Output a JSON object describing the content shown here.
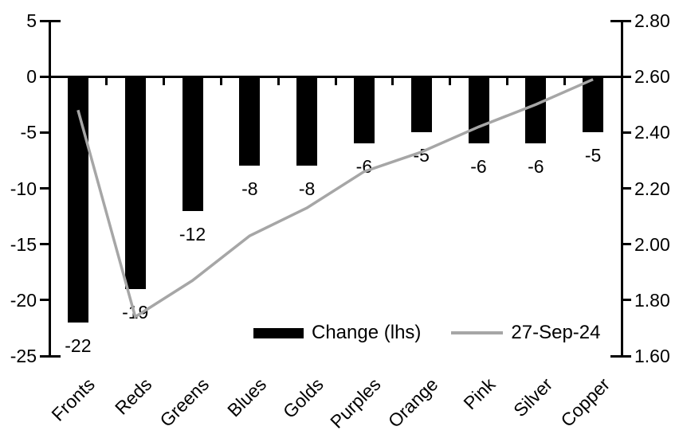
{
  "chart_data": {
    "type": "bar",
    "subtype": "dual-axis-bar-and-line",
    "title": "",
    "categories": [
      "Fronts",
      "Reds",
      "Greens",
      "Blues",
      "Golds",
      "Purples",
      "Orange",
      "Pink",
      "Silver",
      "Copper"
    ],
    "series": [
      {
        "name": "Change (lhs)",
        "type": "bar",
        "axis": "left",
        "color": "#000000",
        "values": [
          -22,
          -19,
          -12,
          -8,
          -8,
          -6,
          -5,
          -6,
          -6,
          -5
        ],
        "labels": [
          "-22",
          "-19",
          "-12",
          "-8",
          "-8",
          "-6",
          "-5",
          "-6",
          "-6",
          "-5"
        ]
      },
      {
        "name": "27-Sep-24",
        "type": "line",
        "axis": "right",
        "color": "#a6a6a6",
        "values": [
          2.48,
          1.74,
          1.87,
          2.03,
          2.13,
          2.26,
          2.33,
          2.42,
          2.5,
          2.59
        ]
      }
    ],
    "left_axis": {
      "min": -25,
      "max": 5,
      "step": 5,
      "ticks": [
        "5",
        "0",
        "-5",
        "-10",
        "-15",
        "-20",
        "-25"
      ]
    },
    "right_axis": {
      "min": 1.6,
      "max": 2.8,
      "step": 0.2,
      "ticks": [
        "2.80",
        "2.60",
        "2.40",
        "2.20",
        "2.00",
        "1.80",
        "1.60"
      ]
    },
    "legend": {
      "position": "inside-bottom",
      "items": [
        "Change (lhs)",
        "27-Sep-24"
      ]
    },
    "grid": false,
    "background": "#ffffff",
    "axis_color": "#000000"
  }
}
